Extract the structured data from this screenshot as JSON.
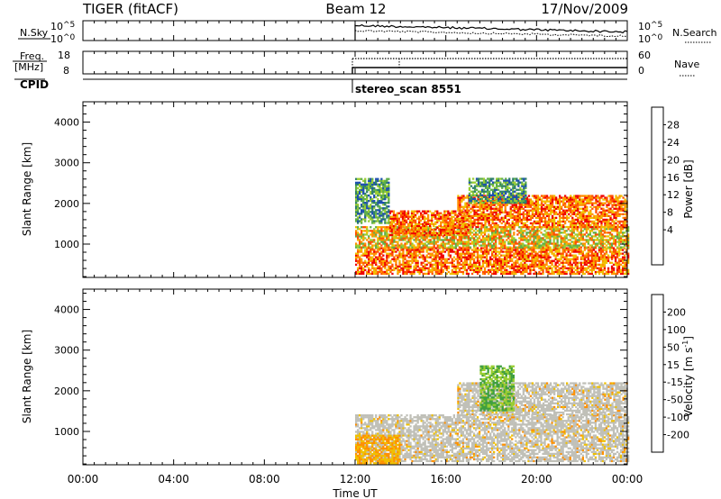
{
  "header": {
    "title_left": "TIGER (fitACF)",
    "title_center": "Beam 12",
    "title_right": "17/Nov/2009"
  },
  "nsky_panel": {
    "left_label": "N.Sky",
    "right_label": "N.Search",
    "left_ticks": [
      {
        "base": "10",
        "exp": "^5"
      },
      {
        "base": "10",
        "exp": "^0"
      }
    ],
    "right_ticks": [
      {
        "base": "10",
        "exp": "^5"
      },
      {
        "base": "10",
        "exp": "^0"
      }
    ]
  },
  "freq_panel": {
    "left_label_line1": "Freq.",
    "left_label_line2": "[MHz]",
    "right_label": "Nave",
    "left_ticks": [
      "18",
      "8"
    ],
    "right_ticks": [
      "60",
      "0"
    ]
  },
  "cpid_panel": {
    "label": "CPID",
    "program": "stereo_scan 8551"
  },
  "time_axis": {
    "xlabel": "Time UT",
    "ticks": [
      "00:00",
      "04:00",
      "08:00",
      "12:00",
      "16:00",
      "20:00",
      "00:00"
    ]
  },
  "chart_data": [
    {
      "type": "heatmap",
      "name_ref": "power",
      "title": "",
      "xlabel": "Time UT",
      "ylabel": "Slant Range [km]",
      "x_range_hours": [
        0,
        24
      ],
      "ylim": [
        180,
        4500
      ],
      "y_ticks": [
        "1000",
        "2000",
        "3000",
        "4000"
      ],
      "colorbar": {
        "label": "Power [dB]",
        "ticks": [
          "28",
          "24",
          "20",
          "16",
          "12",
          "8",
          "4"
        ],
        "colors": [
          "#0000ff",
          "#1d4fb0",
          "#2f7f6a",
          "#5fae4a",
          "#9acd32",
          "#f0c000",
          "#ff9000",
          "#ff5000",
          "#ee0000"
        ]
      },
      "echo_regions": [
        {
          "t": [
            12.0,
            24.0
          ],
          "range": [
            250,
            900
          ],
          "level": "high"
        },
        {
          "t": [
            12.0,
            24.0
          ],
          "range": [
            900,
            1400
          ],
          "level": "mid"
        },
        {
          "t": [
            13.5,
            17.0
          ],
          "range": [
            1200,
            1800
          ],
          "level": "high"
        },
        {
          "t": [
            16.5,
            24.0
          ],
          "range": [
            1400,
            2200
          ],
          "level": "high"
        },
        {
          "t": [
            17.0,
            19.5
          ],
          "range": [
            2000,
            2600
          ],
          "level": "low"
        },
        {
          "t": [
            12.0,
            13.5
          ],
          "range": [
            1500,
            2600
          ],
          "level": "low"
        }
      ]
    },
    {
      "type": "heatmap",
      "name_ref": "velocity",
      "title": "",
      "xlabel": "Time UT",
      "ylabel": "Slant Range [km]",
      "x_range_hours": [
        0,
        24
      ],
      "ylim": [
        180,
        4500
      ],
      "y_ticks": [
        "1000",
        "2000",
        "3000",
        "4000"
      ],
      "colorbar": {
        "label": "Velocity [m s^-1]",
        "label_base": "Velocity [m s",
        "label_sup": "-1",
        "label_end": "]",
        "ticks": [
          "200",
          "100",
          "50",
          "15",
          "-15",
          "-50",
          "-100",
          "-200"
        ],
        "colors": [
          "#ee0000",
          "#ff5000",
          "#ff9000",
          "#f0c000",
          "#c0c0b8",
          "#9acd32",
          "#3f9f3f",
          "#2050b0",
          "#0000ff"
        ]
      },
      "echo_regions": [
        {
          "t": [
            12.0,
            24.0
          ],
          "range": [
            250,
            1400
          ],
          "level": "ground"
        },
        {
          "t": [
            16.5,
            24.0
          ],
          "range": [
            1400,
            2200
          ],
          "level": "ground"
        },
        {
          "t": [
            17.5,
            19.0
          ],
          "range": [
            1500,
            2600
          ],
          "level": "positive"
        },
        {
          "t": [
            12.0,
            14.0
          ],
          "range": [
            200,
            900
          ],
          "level": "negative"
        }
      ]
    }
  ]
}
